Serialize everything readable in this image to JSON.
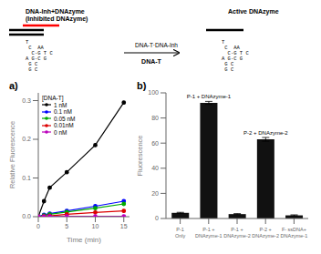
{
  "chart_data": [
    {
      "type": "diagram",
      "annotations": [
        "DNA-Inh+DNAzyme\n(Inhibited DNAzyme)",
        "T\n C  AA\n  C·G T C\nA G·C G\n G C\n G C",
        "DNA-T·DNA-Inh",
        "DNA-T",
        "Active DNAzyme",
        "T\n C  AA\n  C·G T C\nA G·C G\n G C\n G C"
      ]
    },
    {
      "type": "line",
      "title": "a)",
      "x": [
        0,
        1,
        2,
        5,
        10,
        15
      ],
      "series": [
        {
          "name": "1 nM",
          "color": "#000000",
          "marker": "circle",
          "values": [
            0.0,
            0.04,
            0.075,
            0.115,
            0.185,
            0.295
          ]
        },
        {
          "name": "0.1 nM",
          "color": "#0000ff",
          "marker": "circle",
          "values": [
            0.0,
            0.005,
            0.008,
            0.015,
            0.027,
            0.04
          ]
        },
        {
          "name": "0.05 nM",
          "color": "#00aa00",
          "marker": "circle",
          "values": [
            0.0,
            0.003,
            0.006,
            0.012,
            0.022,
            0.033
          ]
        },
        {
          "name": "0.01nM",
          "color": "#dd0000",
          "marker": "circle",
          "values": [
            0.0,
            0.001,
            0.002,
            0.006,
            0.011,
            0.015
          ]
        },
        {
          "name": "0 nM",
          "color": "#bb00bb",
          "marker": "circle",
          "values": [
            0.0,
            0.0,
            0.001,
            0.001,
            0.001,
            0.001
          ]
        }
      ],
      "x_label": "Time (min)",
      "y_label": "Relative Fluorescence",
      "xlim": [
        0,
        16
      ],
      "ylim": [
        0,
        0.32
      ],
      "xticks": [
        0,
        5,
        10,
        15
      ],
      "yticks": [
        {
          "value": 0,
          "label": "0.0"
        },
        0.1,
        0.2,
        0.3
      ],
      "legend": "upper left",
      "legend_title": "[DNA-T]"
    },
    {
      "type": "bar",
      "title": "b)",
      "categories": [
        "P-1\nOnly",
        "P-1 +\nDNAzyme-1",
        "P-1 +\nDNAzyme-2",
        "P-2 +\nDNAzyme-2",
        "F- ssDNA+\nDNAzyme-1"
      ],
      "values": [
        4.5,
        92.0,
        3.5,
        63.0,
        2.5
      ],
      "errors": [
        0.4,
        1.2,
        0.4,
        1.5,
        0.4
      ],
      "color": "#111111",
      "y_label": "Fluorescence",
      "ylim": [
        0,
        100
      ],
      "yticks": [
        0,
        20,
        40,
        60,
        80,
        100
      ],
      "annotations": [
        {
          "text": "P-1 + DNAzyme-1",
          "category": "P-1 +\nDNAzyme-1"
        },
        {
          "text": "P-2 + DNAzyme-2",
          "category": "P-2 +\nDNAzyme-2"
        }
      ]
    }
  ]
}
